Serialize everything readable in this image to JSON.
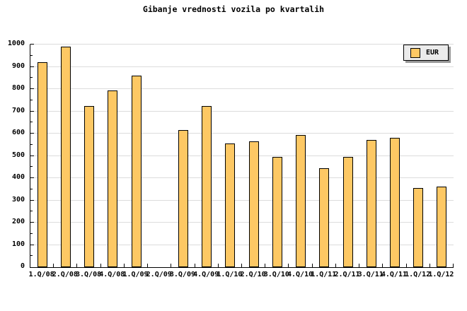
{
  "title": "Gibanje vrednosti vozila po kvartalih",
  "legend": {
    "label": "EUR"
  },
  "colors": {
    "background": "#FFFFFF",
    "bar_fill": "#FDC864",
    "bar_border": "#000000",
    "gridline": "#DCDCDC",
    "axis": "#000000",
    "legend_bg": "#EBEBEB",
    "legend_shadow": "#999999"
  },
  "chart_data": {
    "type": "bar",
    "title": "Gibanje vrednosti vozila po kvartalih",
    "categories": [
      "1.Q/08",
      "2.Q/08",
      "3.Q/08",
      "4.Q/08",
      "1.Q/09",
      "2.Q/09",
      "3.Q/09",
      "4.Q/09",
      "1.Q/10",
      "2.Q/10",
      "3.Q/10",
      "4.Q/10",
      "1.Q/11",
      "2.Q/11",
      "3.Q/11",
      "4.Q/11",
      "1.Q/12",
      "1.Q/12"
    ],
    "series": [
      {
        "name": "EUR",
        "values": [
          920,
          990,
          725,
          795,
          860,
          0,
          615,
          725,
          555,
          565,
          495,
          595,
          445,
          495,
          570,
          580,
          355,
          362
        ]
      }
    ],
    "note": "2.Q/09 has no bar (value 0)",
    "xlabel": "",
    "ylabel": "",
    "ylim": [
      0,
      1000
    ],
    "ytick_step": 100,
    "yminor_tick_step": 50,
    "grid": "horizontal",
    "legend_position": "top-right"
  }
}
